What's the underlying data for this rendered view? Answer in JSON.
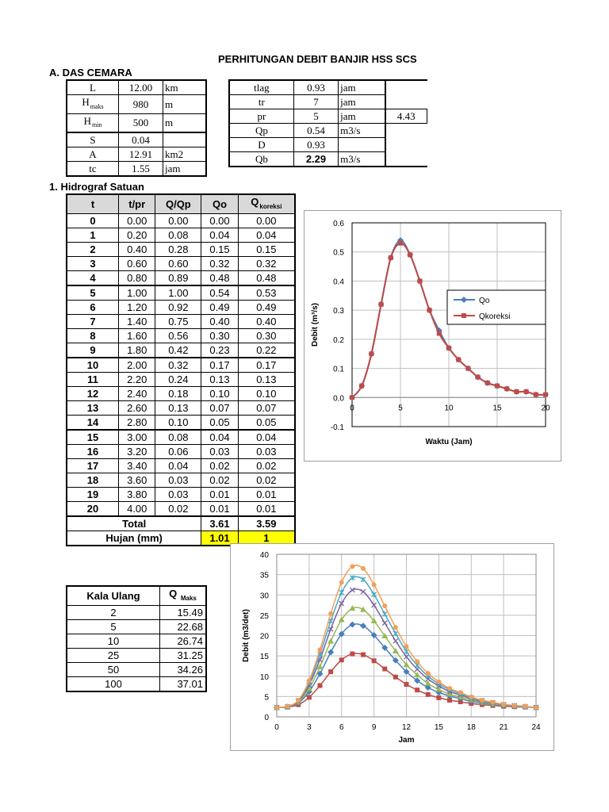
{
  "title": "PERHITUNGAN DEBIT BANJIR HSS SCS",
  "section_a": "A. DAS CEMARA",
  "params_left": [
    {
      "name": "L",
      "sub": "",
      "value": "12.00",
      "unit": "km"
    },
    {
      "name": "H",
      "sub": "maks",
      "value": "980",
      "unit": "m"
    },
    {
      "name": "H",
      "sub": "min",
      "value": "500",
      "unit": "m"
    },
    {
      "name": "S",
      "sub": "",
      "value": "0.04",
      "unit": ""
    },
    {
      "name": "A",
      "sub": "",
      "value": "12.91",
      "unit": "km2"
    },
    {
      "name": "tc",
      "sub": "",
      "value": "1.55",
      "unit": "jam"
    }
  ],
  "params_right": [
    {
      "name": "tlag",
      "value": "0.93",
      "unit": "jam",
      "extra": ""
    },
    {
      "name": "tr",
      "value": "7",
      "unit": "jam",
      "extra": ""
    },
    {
      "name": "pr",
      "value": "5",
      "unit": "jam",
      "extra": "4.43"
    },
    {
      "name": "Qp",
      "value": "0.54",
      "unit": "m3/s",
      "extra": ""
    },
    {
      "name": "D",
      "value": "0.93",
      "unit": "",
      "extra": ""
    },
    {
      "name": "Qb",
      "value": "2.29",
      "unit": "m3/s",
      "extra": ""
    }
  ],
  "section_1": "1. Hidrograf Satuan",
  "hydro_headers": [
    "t",
    "t/pr",
    "Q/Qp",
    "Qo",
    "Q",
    "koreksi"
  ],
  "hydro_rows": [
    [
      "0",
      "0.00",
      "0.00",
      "0.00",
      "0.00"
    ],
    [
      "1",
      "0.20",
      "0.08",
      "0.04",
      "0.04"
    ],
    [
      "2",
      "0.40",
      "0.28",
      "0.15",
      "0.15"
    ],
    [
      "3",
      "0.60",
      "0.60",
      "0.32",
      "0.32"
    ],
    [
      "4",
      "0.80",
      "0.89",
      "0.48",
      "0.48"
    ],
    [
      "5",
      "1.00",
      "1.00",
      "0.54",
      "0.53"
    ],
    [
      "6",
      "1.20",
      "0.92",
      "0.49",
      "0.49"
    ],
    [
      "7",
      "1.40",
      "0.75",
      "0.40",
      "0.40"
    ],
    [
      "8",
      "1.60",
      "0.56",
      "0.30",
      "0.30"
    ],
    [
      "9",
      "1.80",
      "0.42",
      "0.23",
      "0.22"
    ],
    [
      "10",
      "2.00",
      "0.32",
      "0.17",
      "0.17"
    ],
    [
      "11",
      "2.20",
      "0.24",
      "0.13",
      "0.13"
    ],
    [
      "12",
      "2.40",
      "0.18",
      "0.10",
      "0.10"
    ],
    [
      "13",
      "2.60",
      "0.13",
      "0.07",
      "0.07"
    ],
    [
      "14",
      "2.80",
      "0.10",
      "0.05",
      "0.05"
    ],
    [
      "15",
      "3.00",
      "0.08",
      "0.04",
      "0.04"
    ],
    [
      "16",
      "3.20",
      "0.06",
      "0.03",
      "0.03"
    ],
    [
      "17",
      "3.40",
      "0.04",
      "0.02",
      "0.02"
    ],
    [
      "18",
      "3.60",
      "0.03",
      "0.02",
      "0.02"
    ],
    [
      "19",
      "3.80",
      "0.03",
      "0.01",
      "0.01"
    ],
    [
      "20",
      "4.00",
      "0.02",
      "0.01",
      "0.01"
    ]
  ],
  "hydro_total": {
    "label": "Total",
    "qo": "3.61",
    "qk": "3.59"
  },
  "hydro_hujan": {
    "label": "Hujan (mm)",
    "qo": "1.01",
    "qk": "1"
  },
  "kala": {
    "headers": [
      "Kala Ulang",
      "Q",
      "Maks"
    ],
    "rows": [
      [
        "2",
        "15.49"
      ],
      [
        "5",
        "22.68"
      ],
      [
        "10",
        "26.74"
      ],
      [
        "25",
        "31.25"
      ],
      [
        "50",
        "34.26"
      ],
      [
        "100",
        "37.01"
      ]
    ]
  },
  "chart_data": [
    {
      "type": "line",
      "xlabel": "Waktu (Jam)",
      "ylabel": "Debit (m³/s)",
      "xlim": [
        0,
        20
      ],
      "ylim": [
        -0.1,
        0.6
      ],
      "xticks": [
        "0",
        "5",
        "10",
        "15",
        "20"
      ],
      "yticks": [
        "-0.1",
        "0.0",
        "0.1",
        "0.2",
        "0.3",
        "0.4",
        "0.5",
        "0.6"
      ],
      "grid": true,
      "legend": "right",
      "x": [
        0,
        1,
        2,
        3,
        4,
        5,
        6,
        7,
        8,
        9,
        10,
        11,
        12,
        13,
        14,
        15,
        16,
        17,
        18,
        19,
        20
      ],
      "series": [
        {
          "name": "Qo",
          "color": "#4a7ebb",
          "marker": "diamond",
          "values": [
            0,
            0.04,
            0.15,
            0.32,
            0.48,
            0.54,
            0.49,
            0.4,
            0.3,
            0.23,
            0.17,
            0.13,
            0.1,
            0.07,
            0.05,
            0.04,
            0.03,
            0.02,
            0.02,
            0.01,
            0.01
          ]
        },
        {
          "name": "Qkoreksi",
          "color": "#be4b48",
          "marker": "square",
          "values": [
            0,
            0.04,
            0.15,
            0.32,
            0.48,
            0.53,
            0.49,
            0.4,
            0.3,
            0.22,
            0.17,
            0.13,
            0.1,
            0.07,
            0.05,
            0.04,
            0.03,
            0.02,
            0.02,
            0.01,
            0.01
          ]
        }
      ]
    },
    {
      "type": "line",
      "xlabel": "Jam",
      "ylabel": "Debit (m3/det)",
      "xlim": [
        0,
        24
      ],
      "ylim": [
        0,
        40
      ],
      "xticks": [
        "0",
        "3",
        "6",
        "9",
        "12",
        "15",
        "18",
        "21",
        "24"
      ],
      "yticks": [
        "0",
        "5",
        "10",
        "15",
        "20",
        "25",
        "30",
        "35",
        "40"
      ],
      "grid": true,
      "x": [
        0,
        1,
        2,
        3,
        4,
        5,
        6,
        7,
        8,
        9,
        10,
        11,
        12,
        13,
        14,
        15,
        16,
        17,
        18,
        19,
        20,
        21,
        22,
        23,
        24
      ],
      "series": [
        {
          "color": "#be4b48",
          "marker": "square",
          "values": [
            2.3,
            2.4,
            3.0,
            4.8,
            7.7,
            11.1,
            14.0,
            15.5,
            15.3,
            13.8,
            11.8,
            9.8,
            8.0,
            6.6,
            5.5,
            4.7,
            4.1,
            3.7,
            3.3,
            3.0,
            2.8,
            2.6,
            2.5,
            2.4,
            2.3
          ]
        },
        {
          "color": "#4a7ebb",
          "marker": "diamond",
          "values": [
            2.3,
            2.5,
            3.4,
            6.2,
            10.6,
            15.9,
            20.4,
            22.7,
            22.4,
            20.1,
            17.0,
            13.9,
            11.1,
            8.9,
            7.2,
            6.0,
            5.1,
            4.5,
            3.8,
            3.4,
            3.1,
            2.8,
            2.6,
            2.5,
            2.3
          ]
        },
        {
          "color": "#98b954",
          "marker": "triangle",
          "values": [
            2.3,
            2.5,
            3.6,
            6.9,
            12.3,
            18.6,
            23.9,
            26.7,
            26.4,
            23.6,
            19.9,
            16.2,
            12.8,
            10.3,
            8.2,
            6.7,
            5.6,
            4.9,
            4.2,
            3.6,
            3.2,
            2.9,
            2.7,
            2.5,
            2.3
          ]
        },
        {
          "color": "#7d60a0",
          "marker": "x",
          "values": [
            2.3,
            2.5,
            3.8,
            7.8,
            14.1,
            21.6,
            27.9,
            31.2,
            30.8,
            27.5,
            23.1,
            18.7,
            14.8,
            11.7,
            9.3,
            7.6,
            6.2,
            5.4,
            4.5,
            3.8,
            3.4,
            3.0,
            2.7,
            2.5,
            2.3
          ]
        },
        {
          "color": "#46aac5",
          "marker": "star",
          "values": [
            2.3,
            2.5,
            4.0,
            8.4,
            15.4,
            23.6,
            30.6,
            34.2,
            33.8,
            30.1,
            25.3,
            20.5,
            16.1,
            12.7,
            10.0,
            8.1,
            6.7,
            5.7,
            4.7,
            4.0,
            3.5,
            3.0,
            2.8,
            2.5,
            2.3
          ]
        },
        {
          "color": "#f59d56",
          "marker": "circle",
          "values": [
            2.3,
            2.6,
            4.1,
            8.9,
            16.5,
            25.4,
            33.1,
            37.0,
            36.5,
            32.5,
            27.3,
            22.0,
            17.3,
            13.6,
            10.7,
            8.6,
            7.0,
            6.0,
            4.9,
            4.1,
            3.6,
            3.1,
            2.8,
            2.6,
            2.3
          ]
        }
      ]
    }
  ]
}
